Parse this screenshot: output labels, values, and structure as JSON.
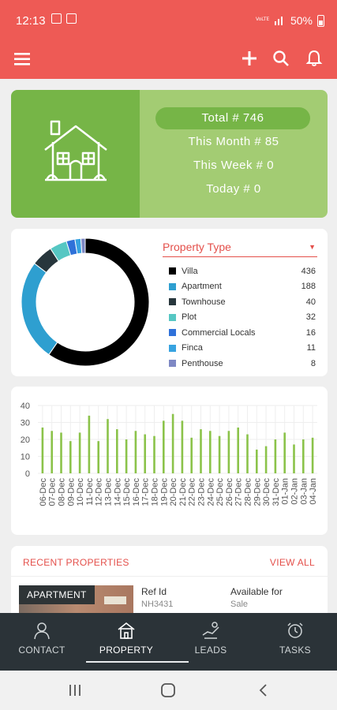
{
  "status_bar": {
    "time": "12:13",
    "battery": "50%"
  },
  "stats": {
    "total": "Total # 746",
    "this_month": "This Month # 85",
    "this_week": "This Week # 0",
    "today": "Today # 0"
  },
  "property_type": {
    "dropdown_label": "Property Type",
    "items": [
      {
        "name": "Villa",
        "count": "436",
        "color": "#000000"
      },
      {
        "name": "Apartment",
        "count": "188",
        "color": "#2e9fd0"
      },
      {
        "name": "Townhouse",
        "count": "40",
        "color": "#27363c"
      },
      {
        "name": "Plot",
        "count": "32",
        "color": "#56c7c3"
      },
      {
        "name": "Commercial Locals",
        "count": "16",
        "color": "#2f71d9"
      },
      {
        "name": "Finca",
        "count": "11",
        "color": "#37a3e0"
      },
      {
        "name": "Penthouse",
        "count": "8",
        "color": "#7e88c4"
      }
    ]
  },
  "chart_data": [
    {
      "type": "pie",
      "categories": [
        "Villa",
        "Apartment",
        "Townhouse",
        "Plot",
        "Commercial Locals",
        "Finca",
        "Penthouse"
      ],
      "values": [
        436,
        188,
        40,
        32,
        16,
        11,
        8
      ],
      "colors": [
        "#000000",
        "#2e9fd0",
        "#27363c",
        "#56c7c3",
        "#2f71d9",
        "#37a3e0",
        "#7e88c4"
      ],
      "legend": "right"
    },
    {
      "type": "bar",
      "categories": [
        "06-Dec",
        "07-Dec",
        "08-Dec",
        "09-Dec",
        "10-Dec",
        "11-Dec",
        "12-Dec",
        "13-Dec",
        "14-Dec",
        "15-Dec",
        "16-Dec",
        "17-Dec",
        "18-Dec",
        "19-Dec",
        "20-Dec",
        "21-Dec",
        "22-Dec",
        "23-Dec",
        "24-Dec",
        "25-Dec",
        "26-Dec",
        "27-Dec",
        "28-Dec",
        "29-Dec",
        "30-Dec",
        "31-Dec",
        "01-Jan",
        "02-Jan",
        "03-Jan",
        "04-Jan"
      ],
      "values": [
        27,
        25,
        24,
        19,
        24,
        34,
        19,
        32,
        26,
        20,
        25,
        23,
        22,
        31,
        35,
        31,
        21,
        26,
        25,
        22,
        25,
        27,
        23,
        14,
        16,
        20,
        24,
        17,
        20,
        21
      ],
      "ylim": [
        0,
        40
      ],
      "yticks": [
        "0",
        "10",
        "20",
        "30",
        "40"
      ],
      "color": "#8bc34a",
      "grid": true
    }
  ],
  "recent": {
    "heading": "RECENT PROPERTIES",
    "view_all": "VIEW ALL",
    "item": {
      "badge": "APARTMENT",
      "ref_label": "Ref Id",
      "ref_value": "NH3431",
      "avail_label": "Available for",
      "avail_value": "Sale"
    }
  },
  "nav": {
    "contact": "CONTACT",
    "property": "PROPERTY",
    "leads": "LEADS",
    "tasks": "TASKS"
  }
}
